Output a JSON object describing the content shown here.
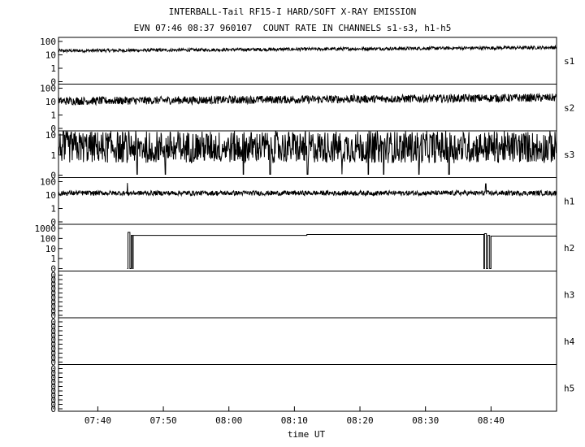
{
  "header": {
    "title": "INTERBALL-Tail RF15-I HARD/SOFT X-RAY EMISSION",
    "subtitle": "EVN 07:46 08:37 960107  COUNT RATE IN CHANNELS s1-s3, h1-h5"
  },
  "chart_data": {
    "type": "line",
    "title": "INTERBALL-Tail RF15-I HARD/SOFT X-RAY EMISSION",
    "subtitle": "EVN 07:46 08:37 960107  COUNT RATE IN CHANNELS s1-s3, h1-h5",
    "xlabel": "time UT",
    "x_range_minutes_of_day": [
      454,
      530
    ],
    "x_ticks": [
      {
        "value": 460,
        "label": "07:40"
      },
      {
        "value": 470,
        "label": "07:50"
      },
      {
        "value": 480,
        "label": "08:00"
      },
      {
        "value": 490,
        "label": "08:10"
      },
      {
        "value": 500,
        "label": "08:20"
      },
      {
        "value": 510,
        "label": "08:30"
      },
      {
        "value": 520,
        "label": "08:40"
      }
    ],
    "y_scale": "log",
    "grid": false,
    "panels": [
      {
        "name": "s1",
        "y_ticks": [
          "100",
          "10",
          "1",
          "0"
        ],
        "baseline": 20,
        "noise": 0.12,
        "drift": 0.25,
        "spikes": []
      },
      {
        "name": "s2",
        "y_ticks": [
          "100",
          "10",
          "1",
          "0"
        ],
        "baseline": 11,
        "noise": 0.3,
        "drift": 0.25,
        "spikes": []
      },
      {
        "name": "s3",
        "y_ticks": [
          "10",
          "1",
          "0"
        ],
        "baseline": 2.5,
        "noise": 0.8,
        "drift": 0.0,
        "dips": [
          466,
          470.3,
          482.2,
          486.3,
          492,
          497.2,
          501.3,
          503.6,
          509,
          513.6
        ]
      },
      {
        "name": "h1",
        "y_ticks": [
          "100",
          "10",
          "1",
          "0"
        ],
        "baseline": 14,
        "noise": 0.18,
        "drift": 0.0,
        "spikes": [
          {
            "x": 464.5,
            "y": 80
          },
          {
            "x": 519.2,
            "y": 70
          }
        ]
      },
      {
        "name": "h2",
        "y_ticks": [
          "1000",
          "100",
          "10",
          "1",
          "0"
        ],
        "baseline": 0,
        "noise": 0,
        "drift": 0,
        "steps": [
          {
            "x": 464.5,
            "y": 0
          },
          {
            "x": 464.6,
            "y": 400
          },
          {
            "x": 464.9,
            "y": 0
          },
          {
            "x": 465.1,
            "y": 200
          },
          {
            "x": 465.3,
            "y": 0
          },
          {
            "x": 465.4,
            "y": 200
          },
          {
            "x": 491.9,
            "y": 250
          },
          {
            "x": 518.8,
            "y": 250
          },
          {
            "x": 518.9,
            "y": 0
          },
          {
            "x": 519.0,
            "y": 300
          },
          {
            "x": 519.3,
            "y": 0
          },
          {
            "x": 519.5,
            "y": 200
          },
          {
            "x": 519.8,
            "y": 0
          },
          {
            "x": 520.0,
            "y": 170
          },
          {
            "x": 530,
            "y": 170
          }
        ]
      },
      {
        "name": "h3",
        "y_ticks": [
          "0",
          "0",
          "0",
          "0",
          "0",
          "0",
          "0",
          "0",
          "0",
          "0"
        ],
        "empty": true
      },
      {
        "name": "h4",
        "y_ticks": [
          "0",
          "0",
          "0",
          "0",
          "0",
          "0",
          "0",
          "0",
          "0",
          "0"
        ],
        "empty": true
      },
      {
        "name": "h5",
        "y_ticks": [
          "0",
          "0",
          "0",
          "0",
          "0",
          "0",
          "0",
          "0",
          "0",
          "0"
        ],
        "empty": true
      }
    ]
  }
}
